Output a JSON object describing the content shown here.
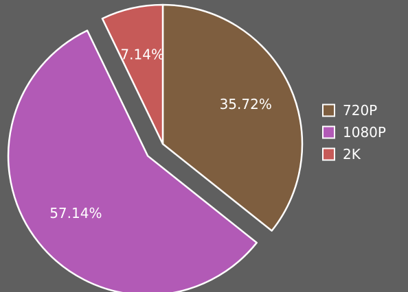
{
  "chart_data": {
    "type": "pie",
    "title": "",
    "categories": [
      "720P",
      "1080P",
      "2K"
    ],
    "values": [
      35.72,
      57.14,
      7.14
    ],
    "labels": [
      "35.72%",
      "57.14%",
      "7.14%"
    ],
    "colors": [
      "#7e5e3f",
      "#b25ab6",
      "#c65a58"
    ],
    "exploded": [
      false,
      true,
      false
    ],
    "start_angle": "12 o'clock",
    "direction": "clockwise",
    "legend_position": "right"
  }
}
